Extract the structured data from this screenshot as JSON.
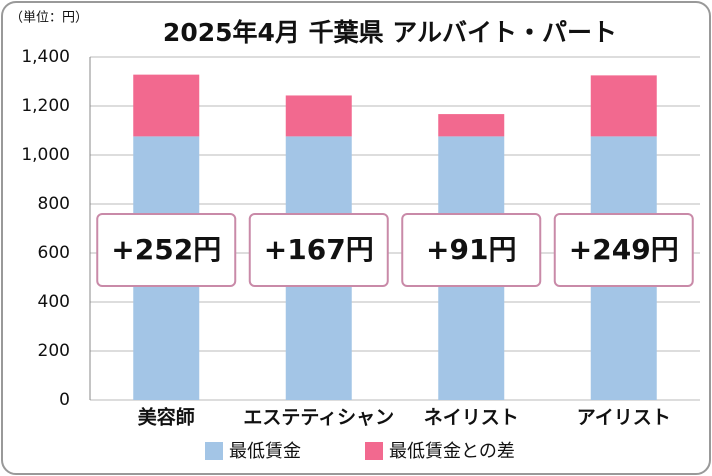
{
  "chart_data": {
    "type": "stacked-bar",
    "title": "2025年4月 千葉県 アルバイト・パート",
    "unit_label": "（単位：円）",
    "categories": [
      "美容師",
      "エステティシャン",
      "ネイリスト",
      "アイリスト"
    ],
    "series": [
      {
        "name": "最低賃金",
        "color": "#a3c5e6",
        "values": [
          1076,
          1076,
          1076,
          1076
        ]
      },
      {
        "name": "最低賃金との差",
        "color": "#f2698f",
        "values": [
          252,
          167,
          91,
          249
        ],
        "value_labels": [
          "+252円",
          "+167円",
          "+91円",
          "+249円"
        ]
      }
    ],
    "ylim": [
      0,
      1400
    ],
    "yticks": [
      0,
      200,
      400,
      600,
      800,
      {
        "value": 1000,
        "label": "1,000"
      },
      {
        "value": 1200,
        "label": "1,200"
      },
      {
        "value": 1400,
        "label": "1,400"
      }
    ],
    "grid": true
  }
}
